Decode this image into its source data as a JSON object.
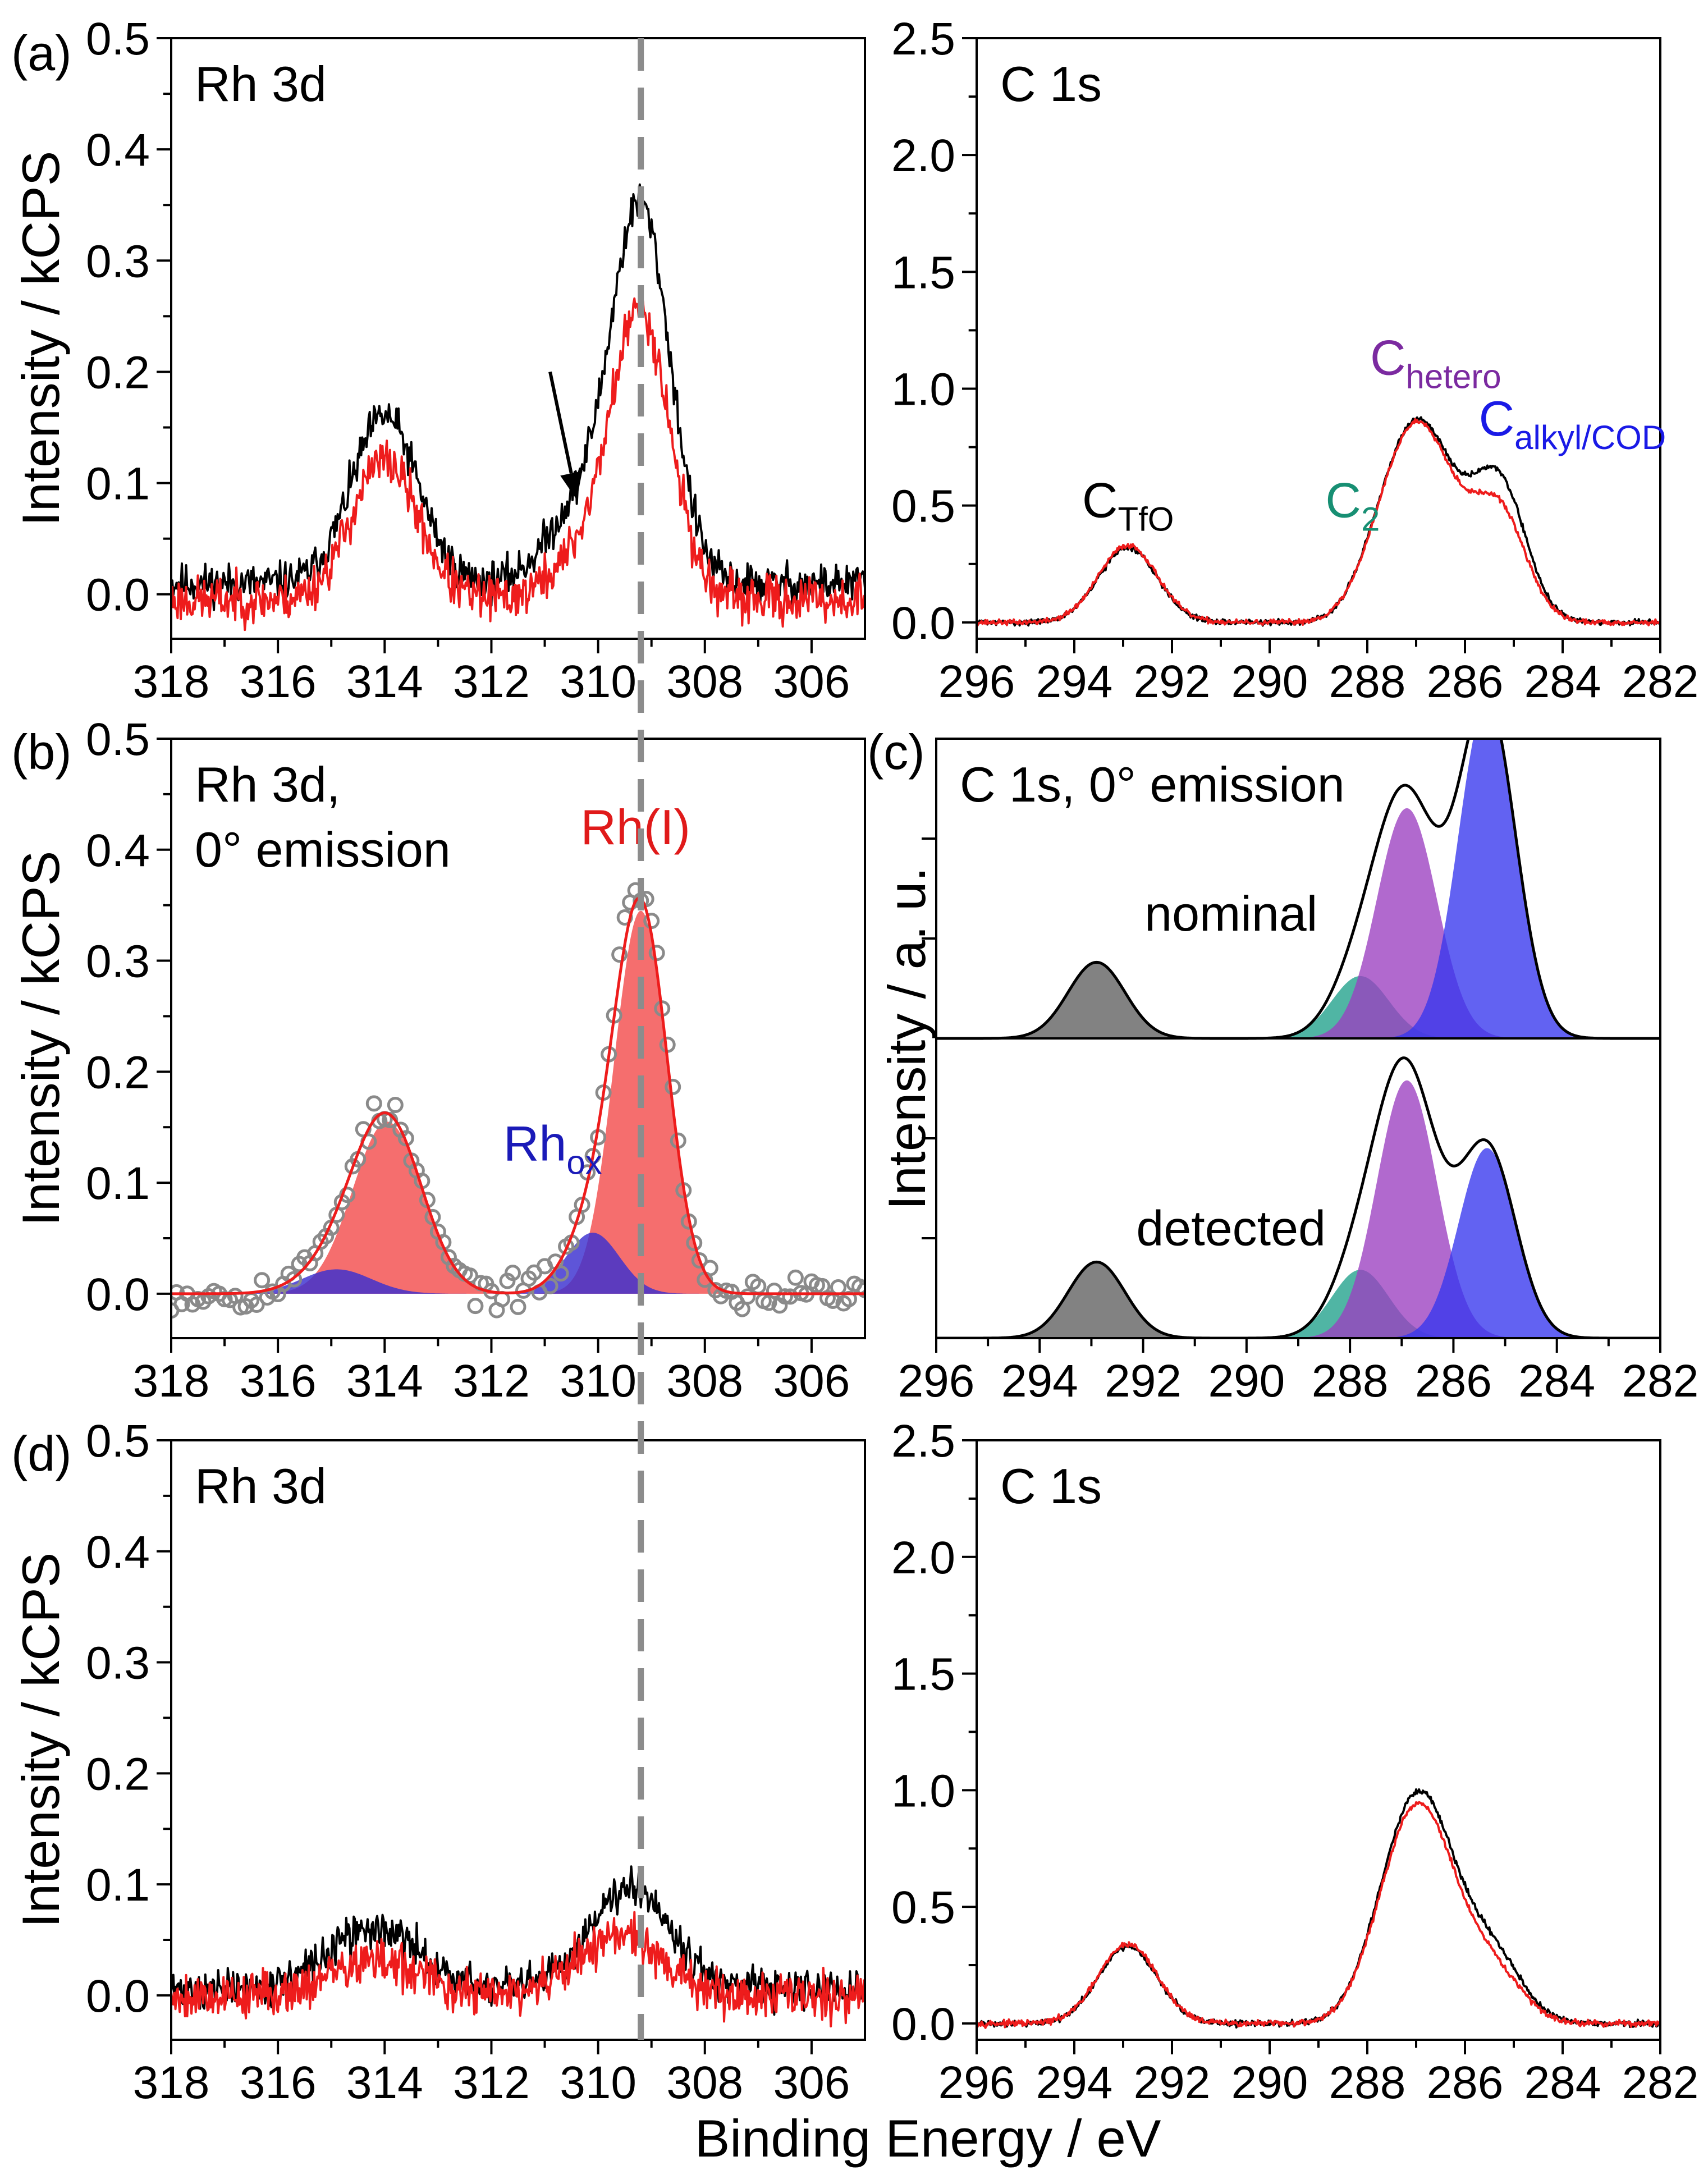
{
  "figure": {
    "global_xlabel": "Binding Energy / eV"
  },
  "colors": {
    "measured": "#000000",
    "second": "#ee1c1c",
    "ref_line": "#8c8c8c",
    "rh_fill": "#f45a5a",
    "rhox_fill": "#3a2fd0",
    "open_marker": "#8a8a8a",
    "c_tfo": "#5f5f5f",
    "c2": "#1fa08a",
    "c_hetero": "#9b3fc0",
    "c_alkyl": "#3636ee",
    "label_hetero": "#7b2aa0",
    "label_c2": "#178f73",
    "label_alkyl": "#1a1ae6",
    "label_rhox": "#1a1ab8",
    "label_rh1": "#e01a1a"
  },
  "chart_data": [
    {
      "id": "a-rh3d",
      "panel_label": "(a)",
      "type": "line",
      "title": "Rh 3d",
      "ylabel": "Intensity / kCPS",
      "xlabel": "",
      "xlim": [
        318,
        305
      ],
      "ylim": [
        -0.04,
        0.5
      ],
      "xticks": [
        318,
        316,
        314,
        312,
        310,
        308,
        306
      ],
      "yticks": [
        0.0,
        0.1,
        0.2,
        0.3,
        0.4,
        0.5
      ],
      "ytick_labels": [
        "0.0",
        "0.1",
        "0.2",
        "0.3",
        "0.4",
        "0.5"
      ],
      "series": [
        {
          "name": "black spectrum",
          "color": "#000000",
          "baseline": 0.01,
          "noise": 0.011,
          "seed": 11,
          "peaks": [
            {
              "c": 314.0,
              "a": 0.15,
              "w": 0.62
            },
            {
              "c": 309.2,
              "a": 0.335,
              "w": 0.55
            },
            {
              "c": 310.4,
              "a": 0.06,
              "w": 0.6
            }
          ]
        },
        {
          "name": "red spectrum",
          "color": "#ee1c1c",
          "baseline": -0.005,
          "noise": 0.013,
          "seed": 23,
          "peaks": [
            {
              "c": 314.0,
              "a": 0.125,
              "w": 0.62
            },
            {
              "c": 309.2,
              "a": 0.255,
              "w": 0.55
            },
            {
              "c": 310.3,
              "a": 0.035,
              "w": 0.6
            }
          ]
        }
      ],
      "ref_line_x": 309.2,
      "arrow": {
        "from": [
          310.9,
          0.2
        ],
        "to": [
          310.4,
          0.085
        ]
      }
    },
    {
      "id": "a-c1s",
      "type": "line",
      "title": "C 1s",
      "ylabel": "",
      "xlabel": "",
      "xlim": [
        296,
        282
      ],
      "ylim": [
        -0.07,
        2.5
      ],
      "xticks": [
        296,
        294,
        292,
        290,
        288,
        286,
        284,
        282
      ],
      "yticks": [
        0.0,
        0.5,
        1.0,
        1.5,
        2.0,
        2.5
      ],
      "ytick_labels": [
        "0.0",
        "0.5",
        "1.0",
        "1.5",
        "2.0",
        "2.5"
      ],
      "series": [
        {
          "name": "black spectrum",
          "color": "#000000",
          "baseline": 0.0,
          "noise": 0.007,
          "seed": 31,
          "peaks": [
            {
              "c": 292.9,
              "a": 0.32,
              "w": 0.6
            },
            {
              "c": 287.7,
              "a": 0.12,
              "w": 0.55
            },
            {
              "c": 286.9,
              "a": 0.82,
              "w": 0.72
            },
            {
              "c": 285.3,
              "a": 0.58,
              "w": 0.55
            }
          ]
        },
        {
          "name": "red spectrum",
          "color": "#ee1c1c",
          "baseline": 0.0,
          "noise": 0.007,
          "seed": 37,
          "peaks": [
            {
              "c": 292.9,
              "a": 0.33,
              "w": 0.6
            },
            {
              "c": 287.7,
              "a": 0.12,
              "w": 0.55
            },
            {
              "c": 286.9,
              "a": 0.81,
              "w": 0.72
            },
            {
              "c": 285.3,
              "a": 0.46,
              "w": 0.55
            }
          ]
        }
      ],
      "annotations": [
        {
          "main": "C",
          "sub": "TfO",
          "color": "#000000",
          "x": 292.9,
          "y": 0.45
        },
        {
          "main": "C",
          "sub": "2",
          "color": "#178f73",
          "x": 288.3,
          "y": 0.45
        },
        {
          "main": "C",
          "sub": "hetero",
          "color": "#7b2aa0",
          "x": 286.6,
          "y": 1.06
        },
        {
          "main": "C",
          "sub": "alkyl/COD",
          "color": "#1a1ae6",
          "x": 283.8,
          "y": 0.8
        }
      ]
    },
    {
      "id": "b-rh3d-fit",
      "panel_label": "(b)",
      "type": "scatter",
      "title": "Rh 3d,",
      "title2": "0° emission",
      "ylabel": "Intensity / kCPS",
      "xlabel": "",
      "xlim": [
        318,
        305
      ],
      "ylim": [
        -0.04,
        0.5
      ],
      "xticks": [
        318,
        316,
        314,
        312,
        310,
        308,
        306
      ],
      "yticks": [
        0.0,
        0.1,
        0.2,
        0.3,
        0.4,
        0.5
      ],
      "ytick_labels": [
        "0.0",
        "0.1",
        "0.2",
        "0.3",
        "0.4",
        "0.5"
      ],
      "fill_components": [
        {
          "name": "Rh(I) 3d5/2",
          "color": "#f45a5a",
          "c": 309.2,
          "a": 0.345,
          "w": 0.5
        },
        {
          "name": "Rh(I) 3d3/2",
          "color": "#f45a5a",
          "c": 313.95,
          "a": 0.155,
          "w": 0.65
        },
        {
          "name": "Rh_ox 3d5/2",
          "color": "#3a2fd0",
          "c": 310.1,
          "a": 0.055,
          "w": 0.5
        },
        {
          "name": "Rh_ox 3d3/2",
          "color": "#3a2fd0",
          "c": 314.9,
          "a": 0.022,
          "w": 0.65
        }
      ],
      "envelope_color": "#ee1c1c",
      "markers": {
        "name": "data points",
        "color": "#8a8a8a",
        "step": 0.1,
        "noise": 0.009,
        "seed": 53
      },
      "ref_line_x": 309.2,
      "annotations": [
        {
          "main": "Rh",
          "sub": "ox",
          "color": "#1a1ab8",
          "x": 310.85,
          "y": 0.12
        },
        {
          "main": "Rh(I)",
          "sub": "",
          "color": "#e01a1a",
          "x": 309.3,
          "y": 0.405
        }
      ]
    },
    {
      "id": "c-c1s-model",
      "panel_label": "(c)",
      "type": "area",
      "title": "C 1s, 0° emission",
      "ylabel": "Intensity / a. u.",
      "xlabel": "",
      "xlim": [
        296,
        282
      ],
      "ylim": [
        0,
        1.0
      ],
      "xticks": [
        296,
        294,
        292,
        290,
        288,
        286,
        284,
        282
      ],
      "yticks": [
        0.1667,
        0.3333,
        0.6667,
        0.8333
      ],
      "ytick_labels": [],
      "divider_y": 0.5,
      "stacks": [
        {
          "label": "nominal",
          "offset": 0.5,
          "components": [
            {
              "name": "C_TfO",
              "color": "#5f5f5f",
              "c": 292.9,
              "a": 0.127,
              "w": 0.55
            },
            {
              "name": "C_2",
              "color": "#1fa08a",
              "c": 287.8,
              "a": 0.104,
              "w": 0.55
            },
            {
              "name": "C_hetero",
              "color": "#9b3fc0",
              "c": 286.9,
              "a": 0.384,
              "w": 0.58
            },
            {
              "name": "C_alkyl/COD",
              "color": "#3636ee",
              "c": 285.35,
              "a": 0.562,
              "w": 0.55
            }
          ]
        },
        {
          "label": "detected",
          "offset": 0.0,
          "components": [
            {
              "name": "C_TfO",
              "color": "#5f5f5f",
              "c": 292.9,
              "a": 0.127,
              "w": 0.55
            },
            {
              "name": "C_2",
              "color": "#1fa08a",
              "c": 287.8,
              "a": 0.114,
              "w": 0.55
            },
            {
              "name": "C_hetero",
              "color": "#9b3fc0",
              "c": 286.9,
              "a": 0.43,
              "w": 0.58
            },
            {
              "name": "C_alkyl/COD",
              "color": "#3636ee",
              "c": 285.35,
              "a": 0.317,
              "w": 0.55
            }
          ]
        }
      ]
    },
    {
      "id": "d-rh3d",
      "panel_label": "(d)",
      "type": "line",
      "title": "Rh 3d",
      "ylabel": "Intensity / kCPS",
      "xlabel": "",
      "xlim": [
        318,
        305
      ],
      "ylim": [
        -0.04,
        0.5
      ],
      "xticks": [
        318,
        316,
        314,
        312,
        310,
        308,
        306
      ],
      "yticks": [
        0.0,
        0.1,
        0.2,
        0.3,
        0.4,
        0.5
      ],
      "ytick_labels": [
        "0.0",
        "0.1",
        "0.2",
        "0.3",
        "0.4",
        "0.5"
      ],
      "series": [
        {
          "name": "black spectrum",
          "color": "#000000",
          "baseline": 0.005,
          "noise": 0.011,
          "seed": 71,
          "peaks": [
            {
              "c": 314.2,
              "a": 0.055,
              "w": 0.85
            },
            {
              "c": 309.4,
              "a": 0.095,
              "w": 0.75
            }
          ]
        },
        {
          "name": "red spectrum",
          "color": "#ee1c1c",
          "baseline": 0.0,
          "noise": 0.013,
          "seed": 79,
          "peaks": [
            {
              "c": 314.2,
              "a": 0.03,
              "w": 0.85
            },
            {
              "c": 309.6,
              "a": 0.055,
              "w": 0.75
            }
          ]
        }
      ],
      "ref_line_x": 309.2
    },
    {
      "id": "d-c1s",
      "type": "line",
      "title": "C 1s",
      "ylabel": "",
      "xlabel": "",
      "xlim": [
        296,
        282
      ],
      "ylim": [
        -0.07,
        2.5
      ],
      "xticks": [
        296,
        294,
        292,
        290,
        288,
        286,
        284,
        282
      ],
      "yticks": [
        0.0,
        0.5,
        1.0,
        1.5,
        2.0,
        2.5
      ],
      "ytick_labels": [
        "0.0",
        "0.5",
        "1.0",
        "1.5",
        "2.0",
        "2.5"
      ],
      "series": [
        {
          "name": "black spectrum",
          "color": "#000000",
          "baseline": 0.0,
          "noise": 0.008,
          "seed": 91,
          "peaks": [
            {
              "c": 292.9,
              "a": 0.33,
              "w": 0.6
            },
            {
              "c": 287.7,
              "a": 0.1,
              "w": 0.55
            },
            {
              "c": 286.9,
              "a": 0.95,
              "w": 0.72
            },
            {
              "c": 285.4,
              "a": 0.26,
              "w": 0.6
            }
          ]
        },
        {
          "name": "red spectrum",
          "color": "#ee1c1c",
          "baseline": 0.0,
          "noise": 0.008,
          "seed": 97,
          "peaks": [
            {
              "c": 292.9,
              "a": 0.34,
              "w": 0.6
            },
            {
              "c": 287.7,
              "a": 0.1,
              "w": 0.55
            },
            {
              "c": 286.9,
              "a": 0.9,
              "w": 0.72
            },
            {
              "c": 285.4,
              "a": 0.2,
              "w": 0.6
            }
          ]
        }
      ]
    }
  ]
}
